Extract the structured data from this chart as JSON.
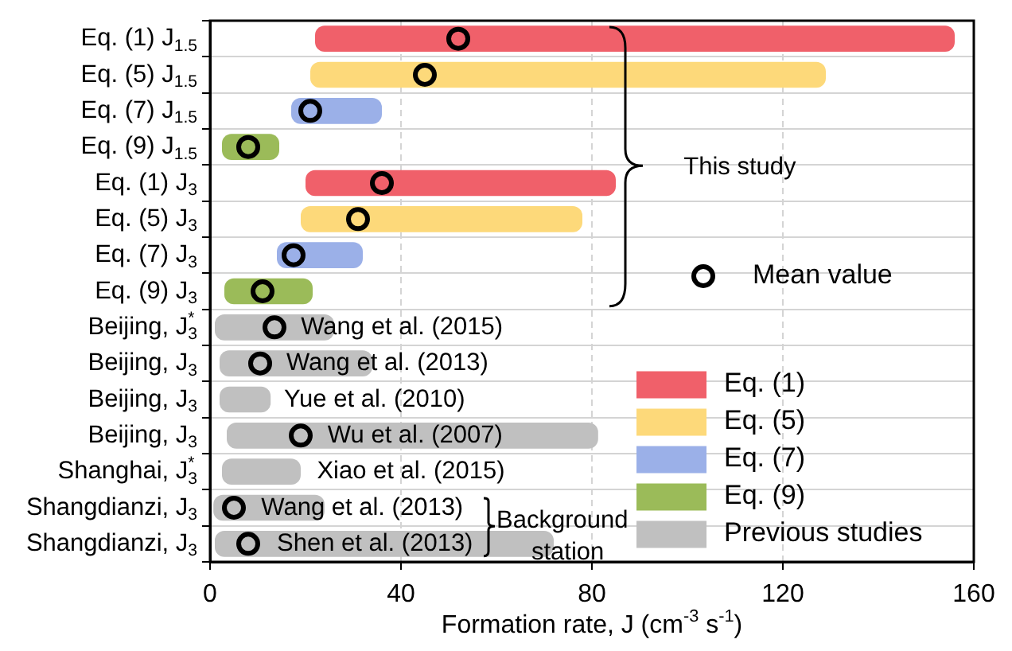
{
  "chart_data": {
    "type": "bar",
    "orientation": "horizontal",
    "xlabel": "Formation rate, J (cm$^{-3}$ s$^{-1}$)",
    "categories": [
      "Eq. (1) J$_{1.5}$",
      "Eq. (5) J$_{1.5}$",
      "Eq. (7) J$_{1.5}$",
      "Eq. (9) J$_{1.5}$",
      "Eq. (1) J$_{3}$",
      "Eq. (5) J$_{3}$",
      "Eq. (7) J$_{3}$",
      "Eq. (9) J$_{3}$",
      "Beijing, J$_{3}$$^{*}$",
      "Beijing, J$_{3}$",
      "Beijing, J$_{3}$",
      "Beijing, J$_{3}$",
      "Shanghai, J$_{3}$$^{*}$",
      "Shangdianzi, J$_{3}$",
      "Shangdianzi, J$_{3}$"
    ],
    "series": [
      {
        "name": "Eq. (1)",
        "color": "#f0606a",
        "base": [
          22,
          null,
          null,
          null,
          20,
          null,
          null,
          null,
          null,
          null,
          null,
          null,
          null,
          null,
          null
        ],
        "values": [
          134,
          null,
          null,
          null,
          65,
          null,
          null,
          null,
          null,
          null,
          null,
          null,
          null,
          null,
          null
        ]
      },
      {
        "name": "Eq. (5)",
        "color": "#fdd97a",
        "base": [
          null,
          21,
          null,
          null,
          null,
          19,
          null,
          null,
          null,
          null,
          null,
          null,
          null,
          null,
          null
        ],
        "values": [
          null,
          108,
          null,
          null,
          null,
          59,
          null,
          null,
          null,
          null,
          null,
          null,
          null,
          null,
          null
        ]
      },
      {
        "name": "Eq. (7)",
        "color": "#9bb0e8",
        "base": [
          null,
          null,
          17,
          null,
          null,
          null,
          14,
          null,
          null,
          null,
          null,
          null,
          null,
          null,
          null
        ],
        "values": [
          null,
          null,
          19,
          null,
          null,
          null,
          18,
          null,
          null,
          null,
          null,
          null,
          null,
          null,
          null
        ]
      },
      {
        "name": "Eq. (9)",
        "color": "#9bbb59",
        "base": [
          null,
          null,
          null,
          2.5,
          null,
          null,
          null,
          3,
          null,
          null,
          null,
          null,
          null,
          null,
          null
        ],
        "values": [
          null,
          null,
          null,
          12,
          null,
          null,
          null,
          18.5,
          null,
          null,
          null,
          null,
          null,
          null,
          null
        ]
      },
      {
        "name": "Previous studies",
        "color": "#c0c0c0",
        "base": [
          null,
          null,
          null,
          null,
          null,
          null,
          null,
          null,
          1,
          2,
          2,
          3.5,
          2.5,
          0.7,
          1
        ],
        "values": [
          null,
          null,
          null,
          null,
          null,
          null,
          null,
          null,
          25,
          32,
          10.7,
          77.8,
          16.5,
          23.3,
          71
        ]
      },
      {
        "name": "Mean value",
        "type": "scatter",
        "color": "#000000",
        "values": [
          52,
          45,
          21,
          8,
          36,
          31,
          17.5,
          11,
          13.5,
          10.5,
          null,
          19,
          null,
          5,
          8
        ]
      }
    ],
    "xlim": [
      0,
      160
    ],
    "xticks": [
      0,
      40,
      80,
      120,
      160
    ],
    "grid": true,
    "legend": "bottom right",
    "marker": "circle",
    "annotations": [
      "Wang et al. (2015)",
      "Wang et al. (2013)",
      "Yue et al. (2010)",
      "Wu et al. (2007)",
      "Xiao et al. (2015)",
      "Wang et al. (2013)",
      "Shen et al. (2013)",
      "This study",
      "Background station"
    ]
  }
}
